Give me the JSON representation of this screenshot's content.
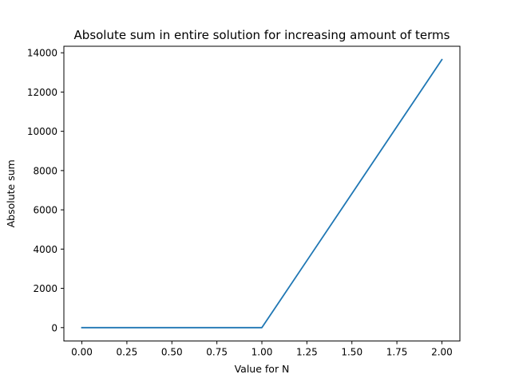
{
  "chart_data": {
    "type": "line",
    "title": "Absolute sum in entire solution for increasing amount of terms",
    "xlabel": "Value for N",
    "ylabel": "Absolute sum",
    "x": [
      0,
      1,
      2
    ],
    "series": [
      {
        "values": [
          0,
          0,
          13650
        ],
        "color": "#1f77b4"
      }
    ],
    "xlim": [
      -0.1,
      2.1
    ],
    "ylim": [
      -682.5,
      14332.5
    ],
    "xticks": [
      0.0,
      0.25,
      0.5,
      0.75,
      1.0,
      1.25,
      1.5,
      1.75,
      2.0
    ],
    "xtick_labels": [
      "0.00",
      "0.25",
      "0.50",
      "0.75",
      "1.00",
      "1.25",
      "1.50",
      "1.75",
      "2.00"
    ],
    "yticks": [
      0,
      2000,
      4000,
      6000,
      8000,
      10000,
      12000,
      14000
    ],
    "ytick_labels": [
      "0",
      "2000",
      "4000",
      "6000",
      "8000",
      "10000",
      "12000",
      "14000"
    ],
    "grid": false,
    "legend": false
  }
}
